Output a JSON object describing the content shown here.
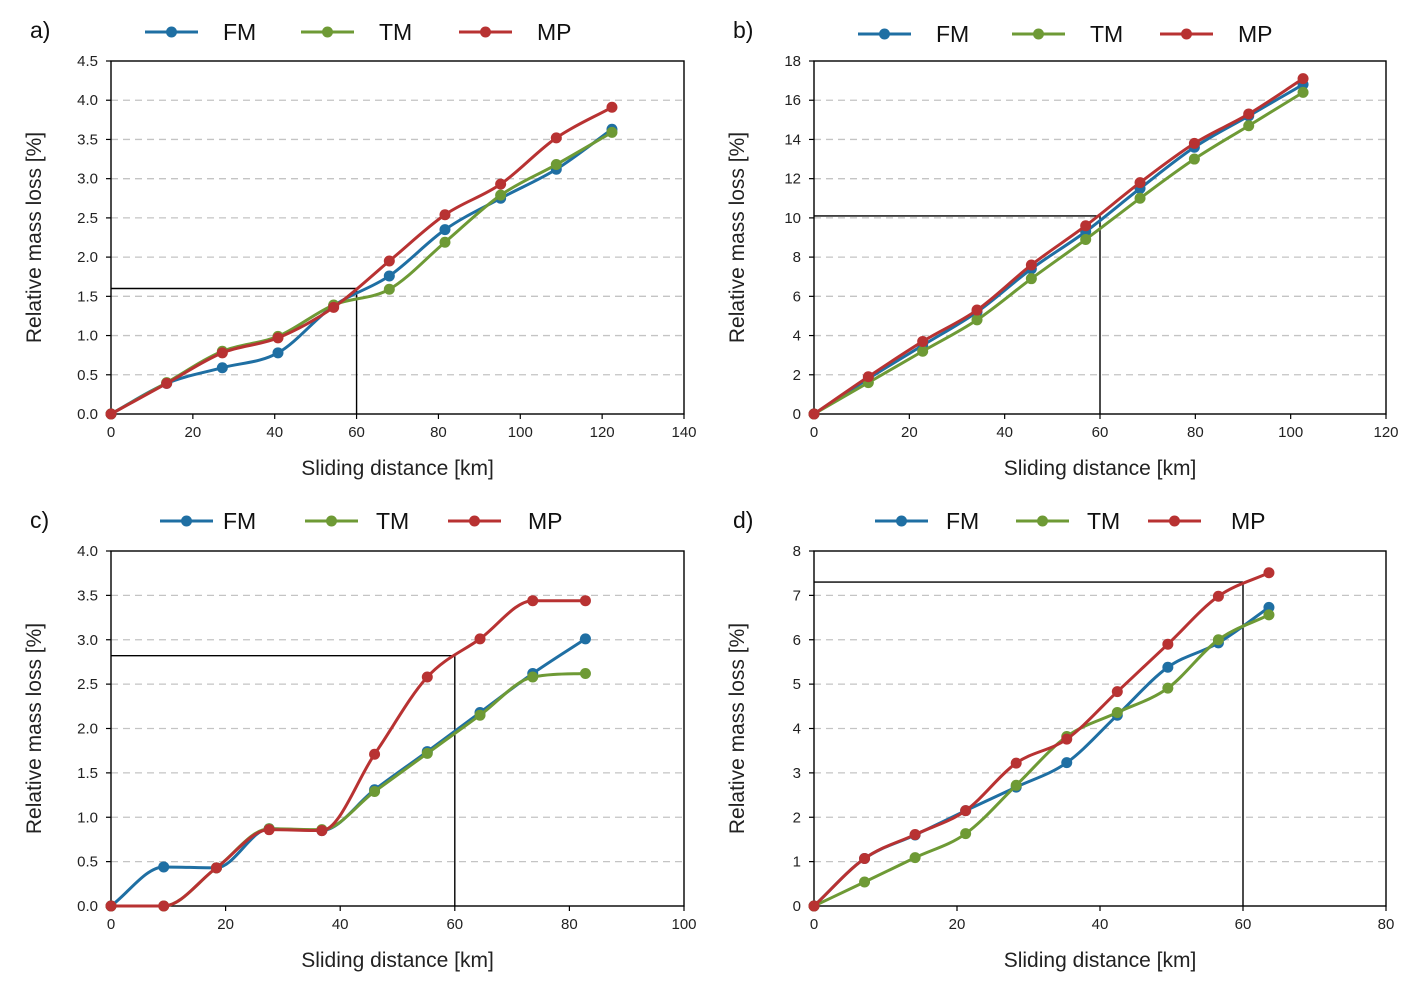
{
  "colors": {
    "FM": "#1f6fa3",
    "TM": "#6e9a35",
    "MP": "#b83232",
    "grid": "#c4c4c4",
    "axis": "#000000"
  },
  "chart_data": [
    {
      "type": "line",
      "panel_label": "a)",
      "xlabel": "Sliding distance [km]",
      "ylabel": "Relative mass loss [%]",
      "xlim": [
        0,
        140
      ],
      "xticks": [
        0,
        20,
        40,
        60,
        80,
        100,
        120,
        140
      ],
      "ylim": [
        0,
        4.5
      ],
      "yticks": [
        0.0,
        0.5,
        1.0,
        1.5,
        2.0,
        2.5,
        3.0,
        3.5,
        4.0,
        4.5
      ],
      "ydecimals": 1,
      "marker_line": {
        "x": 60,
        "y": 1.6
      },
      "legend": [
        "FM",
        "TM",
        "MP"
      ],
      "series": [
        {
          "name": "FM",
          "x": [
            0,
            13.6,
            27.2,
            40.8,
            54.4,
            68,
            81.6,
            95.2,
            108.8,
            122.4
          ],
          "y": [
            0,
            0.39,
            0.59,
            0.78,
            1.38,
            1.76,
            2.35,
            2.75,
            3.12,
            3.63
          ]
        },
        {
          "name": "TM",
          "x": [
            0,
            13.6,
            27.2,
            40.8,
            54.4,
            68,
            81.6,
            95.2,
            108.8,
            122.4
          ],
          "y": [
            0,
            0.4,
            0.8,
            0.99,
            1.39,
            1.59,
            2.19,
            2.79,
            3.18,
            3.59
          ]
        },
        {
          "name": "MP",
          "x": [
            0,
            13.6,
            27.2,
            40.8,
            54.4,
            68,
            81.6,
            95.2,
            108.8,
            122.4
          ],
          "y": [
            0,
            0.39,
            0.78,
            0.97,
            1.36,
            1.95,
            2.54,
            2.93,
            3.52,
            3.91
          ]
        }
      ]
    },
    {
      "type": "line",
      "panel_label": "b)",
      "xlabel": "Sliding distance [km]",
      "ylabel": "Relative mass loss [%]",
      "xlim": [
        0,
        120
      ],
      "xticks": [
        0,
        20,
        40,
        60,
        80,
        100,
        120
      ],
      "ylim": [
        0,
        18
      ],
      "yticks": [
        0,
        2,
        4,
        6,
        8,
        10,
        12,
        14,
        16,
        18
      ],
      "ydecimals": 0,
      "marker_line": {
        "x": 60,
        "y": 10.1
      },
      "legend": [
        "FM",
        "TM",
        "MP"
      ],
      "series": [
        {
          "name": "FM",
          "x": [
            0,
            11.4,
            22.8,
            34.2,
            45.6,
            57,
            68.4,
            79.8,
            91.2,
            102.6
          ],
          "y": [
            0,
            1.8,
            3.5,
            5.2,
            7.4,
            9.3,
            11.5,
            13.6,
            15.2,
            16.8
          ]
        },
        {
          "name": "TM",
          "x": [
            0,
            11.4,
            22.8,
            34.2,
            45.6,
            57,
            68.4,
            79.8,
            91.2,
            102.6
          ],
          "y": [
            0,
            1.6,
            3.2,
            4.8,
            6.9,
            8.9,
            11.0,
            13.0,
            14.7,
            16.4
          ]
        },
        {
          "name": "MP",
          "x": [
            0,
            11.4,
            22.8,
            34.2,
            45.6,
            57,
            68.4,
            79.8,
            91.2,
            102.6
          ],
          "y": [
            0,
            1.9,
            3.7,
            5.3,
            7.6,
            9.6,
            11.8,
            13.8,
            15.3,
            17.1
          ]
        }
      ]
    },
    {
      "type": "line",
      "panel_label": "c)",
      "xlabel": "Sliding distance [km]",
      "ylabel": "Relative mass loss [%]",
      "xlim": [
        0,
        100
      ],
      "xticks": [
        0,
        20,
        40,
        60,
        80,
        100
      ],
      "ylim": [
        0,
        4.0
      ],
      "yticks": [
        0.0,
        0.5,
        1.0,
        1.5,
        2.0,
        2.5,
        3.0,
        3.5,
        4.0
      ],
      "ydecimals": 1,
      "marker_line": {
        "x": 60,
        "y": 2.82
      },
      "legend": [
        "FM",
        "TM",
        "MP"
      ],
      "series": [
        {
          "name": "FM",
          "x": [
            0,
            9.2,
            18.4,
            27.6,
            36.8,
            46,
            55.2,
            64.4,
            73.6,
            82.8
          ],
          "y": [
            0,
            0.44,
            0.43,
            0.87,
            0.85,
            1.31,
            1.74,
            2.18,
            2.62,
            3.01
          ]
        },
        {
          "name": "TM",
          "x": [
            0,
            9.2,
            18.4,
            27.6,
            36.8,
            46,
            55.2,
            64.4,
            73.6,
            82.8
          ],
          "y": [
            0,
            0,
            0.43,
            0.87,
            0.86,
            1.29,
            1.72,
            2.15,
            2.58,
            2.62
          ]
        },
        {
          "name": "MP",
          "x": [
            0,
            9.2,
            18.4,
            27.6,
            36.8,
            46,
            55.2,
            64.4,
            73.6,
            82.8
          ],
          "y": [
            0,
            0,
            0.43,
            0.86,
            0.85,
            1.71,
            2.58,
            3.01,
            3.44,
            3.44
          ]
        }
      ]
    },
    {
      "type": "line",
      "panel_label": "d)",
      "xlabel": "Sliding distance [km]",
      "ylabel": "Relative mass loss [%]",
      "xlim": [
        0,
        80
      ],
      "xticks": [
        0,
        20,
        40,
        60,
        80
      ],
      "ylim": [
        0,
        8
      ],
      "yticks": [
        0,
        1,
        2,
        3,
        4,
        5,
        6,
        7,
        8
      ],
      "ydecimals": 0,
      "marker_line": {
        "x": 60,
        "y": 7.3
      },
      "legend": [
        "FM",
        "TM",
        "MP"
      ],
      "series": [
        {
          "name": "FM",
          "x": [
            0,
            7.07,
            14.14,
            21.21,
            28.28,
            35.35,
            42.42,
            49.49,
            56.56,
            63.63
          ],
          "y": [
            0,
            1.07,
            1.6,
            2.15,
            2.68,
            3.23,
            4.3,
            5.38,
            5.93,
            6.73
          ]
        },
        {
          "name": "TM",
          "x": [
            0,
            7.07,
            14.14,
            21.21,
            28.28,
            35.35,
            42.42,
            49.49,
            56.56,
            63.63
          ],
          "y": [
            0,
            0.54,
            1.09,
            1.63,
            2.72,
            3.82,
            4.36,
            4.91,
            6.0,
            6.56
          ]
        },
        {
          "name": "MP",
          "x": [
            0,
            7.07,
            14.14,
            21.21,
            28.28,
            35.35,
            42.42,
            49.49,
            56.56,
            63.63
          ],
          "y": [
            0,
            1.07,
            1.61,
            2.15,
            3.22,
            3.76,
            4.83,
            5.9,
            6.98,
            7.51
          ]
        }
      ]
    }
  ]
}
